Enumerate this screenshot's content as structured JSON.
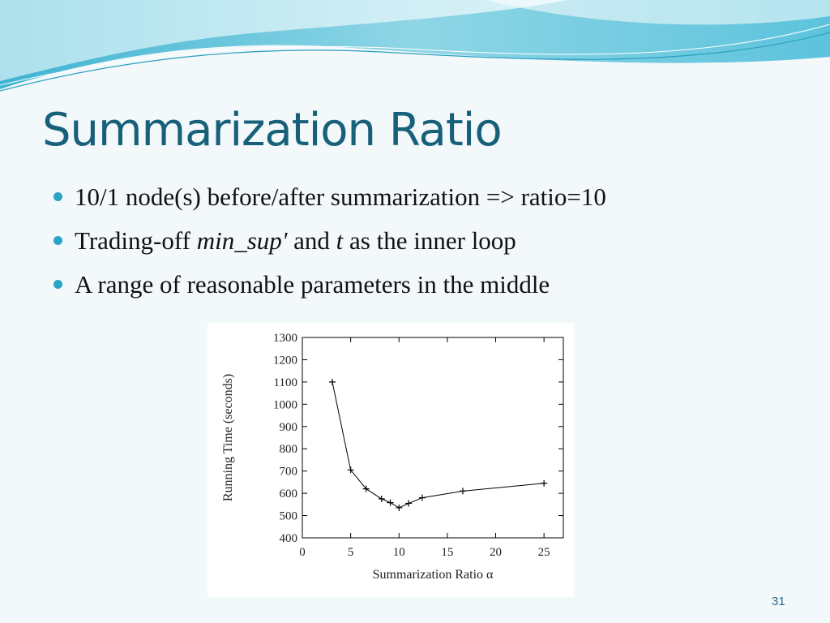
{
  "slide": {
    "title": "Summarization Ratio",
    "number": "31",
    "bullets": [
      {
        "parts": [
          {
            "text": "10/1 node(s) before/after summarization => ratio=10"
          }
        ]
      },
      {
        "parts": [
          {
            "text": "Trading-off "
          },
          {
            "text": "min_sup'",
            "italic": true
          },
          {
            "text": " and "
          },
          {
            "text": "t",
            "italic": true
          },
          {
            "text": " as the inner loop"
          }
        ]
      },
      {
        "parts": [
          {
            "text": "A range of reasonable parameters in the middle"
          }
        ]
      }
    ],
    "colors": {
      "title": "#17607a",
      "bullet": "#2aa5c8",
      "background": "#f3f8fa"
    }
  },
  "chart_data": {
    "type": "line",
    "xlabel": "Summarization Ratio α",
    "ylabel": "Running Time (seconds)",
    "xlim": [
      0,
      27
    ],
    "ylim": [
      400,
      1300
    ],
    "xticks": [
      0,
      5,
      10,
      15,
      20,
      25
    ],
    "yticks": [
      400,
      500,
      600,
      700,
      800,
      900,
      1000,
      1100,
      1200,
      1300
    ],
    "grid": false,
    "marker": "plus",
    "series": [
      {
        "x": [
          3.1,
          5,
          6.6,
          8.2,
          9.1,
          10,
          11,
          12.4,
          16.6,
          25
        ],
        "y": [
          1100,
          705,
          620,
          575,
          558,
          535,
          555,
          580,
          610,
          645
        ]
      }
    ]
  }
}
